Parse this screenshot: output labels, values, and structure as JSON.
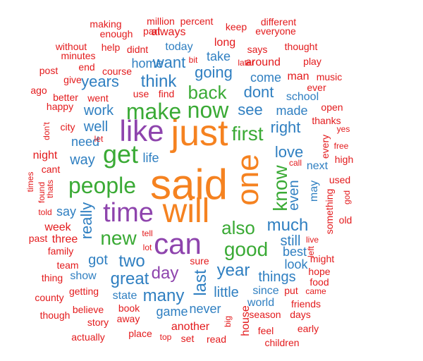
{
  "colors": {
    "orange": "#f58220",
    "purple": "#8e44ad",
    "green": "#3aaa35",
    "blue": "#2f7fc1",
    "red": "#e31a1c"
  },
  "words": [
    {
      "id": "said",
      "text": "said",
      "color": "orange",
      "vertical": false
    },
    {
      "id": "just",
      "text": "just",
      "color": "orange",
      "vertical": false
    },
    {
      "id": "will",
      "text": "will",
      "color": "orange",
      "vertical": false
    },
    {
      "id": "one",
      "text": "one",
      "color": "orange",
      "vertical": true
    },
    {
      "id": "can",
      "text": "can",
      "color": "purple",
      "vertical": false
    },
    {
      "id": "like",
      "text": "like",
      "color": "purple",
      "vertical": false
    },
    {
      "id": "time",
      "text": "time",
      "color": "purple",
      "vertical": false
    },
    {
      "id": "get",
      "text": "get",
      "color": "green",
      "vertical": false
    },
    {
      "id": "people",
      "text": "people",
      "color": "green",
      "vertical": false
    },
    {
      "id": "make",
      "text": "make",
      "color": "green",
      "vertical": false
    },
    {
      "id": "now",
      "text": "now",
      "color": "green",
      "vertical": false
    },
    {
      "id": "new",
      "text": "new",
      "color": "green",
      "vertical": false
    },
    {
      "id": "good",
      "text": "good",
      "color": "green",
      "vertical": false
    },
    {
      "id": "know",
      "text": "know",
      "color": "green",
      "vertical": true
    },
    {
      "id": "first",
      "text": "first",
      "color": "green",
      "vertical": false
    },
    {
      "id": "also",
      "text": "also",
      "color": "green",
      "vertical": false
    },
    {
      "id": "back",
      "text": "back",
      "color": "green",
      "vertical": false
    },
    {
      "id": "day",
      "text": "day",
      "color": "purple",
      "vertical": false
    },
    {
      "id": "two",
      "text": "two",
      "color": "blue",
      "vertical": false
    },
    {
      "id": "year",
      "text": "year",
      "color": "blue",
      "vertical": false
    },
    {
      "id": "last",
      "text": "last",
      "color": "blue",
      "vertical": true
    },
    {
      "id": "many",
      "text": "many",
      "color": "blue",
      "vertical": false
    },
    {
      "id": "great",
      "text": "great",
      "color": "blue",
      "vertical": false
    },
    {
      "id": "much",
      "text": "much",
      "color": "blue",
      "vertical": false
    },
    {
      "id": "think",
      "text": "think",
      "color": "blue",
      "vertical": false
    },
    {
      "id": "going",
      "text": "going",
      "color": "blue",
      "vertical": false
    },
    {
      "id": "see",
      "text": "see",
      "color": "blue",
      "vertical": false
    },
    {
      "id": "dont",
      "text": "dont",
      "color": "blue",
      "vertical": false
    },
    {
      "id": "really",
      "text": "really",
      "color": "blue",
      "vertical": true
    },
    {
      "id": "love",
      "text": "love",
      "color": "blue",
      "vertical": false
    },
    {
      "id": "years",
      "text": "years",
      "color": "blue",
      "vertical": false
    },
    {
      "id": "right",
      "text": "right",
      "color": "blue",
      "vertical": false
    },
    {
      "id": "want",
      "text": "want",
      "color": "blue",
      "vertical": false
    },
    {
      "id": "well",
      "text": "well",
      "color": "blue",
      "vertical": false
    },
    {
      "id": "way",
      "text": "way",
      "color": "blue",
      "vertical": false
    },
    {
      "id": "even",
      "text": "even",
      "color": "blue",
      "vertical": true
    },
    {
      "id": "still",
      "text": "still",
      "color": "blue",
      "vertical": false
    },
    {
      "id": "got",
      "text": "got",
      "color": "blue",
      "vertical": false
    },
    {
      "id": "work",
      "text": "work",
      "color": "blue",
      "vertical": false
    },
    {
      "id": "need",
      "text": "need",
      "color": "blue",
      "vertical": false
    },
    {
      "id": "come",
      "text": "come",
      "color": "blue",
      "vertical": false
    },
    {
      "id": "made",
      "text": "made",
      "color": "blue",
      "vertical": false
    },
    {
      "id": "things",
      "text": "things",
      "color": "blue",
      "vertical": false
    },
    {
      "id": "little",
      "text": "little",
      "color": "blue",
      "vertical": false
    },
    {
      "id": "game",
      "text": "game",
      "color": "blue",
      "vertical": false
    },
    {
      "id": "take",
      "text": "take",
      "color": "blue",
      "vertical": false
    },
    {
      "id": "home",
      "text": "home",
      "color": "blue",
      "vertical": false
    },
    {
      "id": "life",
      "text": "life",
      "color": "blue",
      "vertical": false
    },
    {
      "id": "say",
      "text": "say",
      "color": "blue",
      "vertical": false
    },
    {
      "id": "today",
      "text": "today",
      "color": "blue",
      "vertical": false
    },
    {
      "id": "may",
      "text": "may",
      "color": "blue",
      "vertical": true
    },
    {
      "id": "since",
      "text": "since",
      "color": "blue",
      "vertical": false
    },
    {
      "id": "world",
      "text": "world",
      "color": "blue",
      "vertical": false
    },
    {
      "id": "look",
      "text": "look",
      "color": "blue",
      "vertical": false
    },
    {
      "id": "best",
      "text": "best",
      "color": "blue",
      "vertical": false
    },
    {
      "id": "state",
      "text": "state",
      "color": "blue",
      "vertical": false
    },
    {
      "id": "never",
      "text": "never",
      "color": "blue",
      "vertical": false
    },
    {
      "id": "school",
      "text": "school",
      "color": "blue",
      "vertical": false
    },
    {
      "id": "show",
      "text": "show",
      "color": "blue",
      "vertical": false
    },
    {
      "id": "next",
      "text": "next",
      "color": "blue",
      "vertical": false
    },
    {
      "id": "around",
      "text": "around",
      "color": "red",
      "vertical": false
    },
    {
      "id": "house",
      "text": "house",
      "color": "red",
      "vertical": true
    },
    {
      "id": "another",
      "text": "another",
      "color": "red",
      "vertical": false
    },
    {
      "id": "long",
      "text": "long",
      "color": "red",
      "vertical": false
    },
    {
      "id": "three",
      "text": "three",
      "color": "red",
      "vertical": false
    },
    {
      "id": "week",
      "text": "week",
      "color": "red",
      "vertical": false
    },
    {
      "id": "always",
      "text": "always",
      "color": "red",
      "vertical": false
    },
    {
      "id": "part",
      "text": "part",
      "color": "red",
      "vertical": false
    },
    {
      "id": "million",
      "text": "million",
      "color": "red",
      "vertical": false
    },
    {
      "id": "percent",
      "text": "percent",
      "color": "red",
      "vertical": false
    },
    {
      "id": "keep",
      "text": "keep",
      "color": "red",
      "vertical": false
    },
    {
      "id": "different",
      "text": "different",
      "color": "red",
      "vertical": false
    },
    {
      "id": "everyone",
      "text": "everyone",
      "color": "red",
      "vertical": false
    },
    {
      "id": "making",
      "text": "making",
      "color": "red",
      "vertical": false
    },
    {
      "id": "enough",
      "text": "enough",
      "color": "red",
      "vertical": false
    },
    {
      "id": "says",
      "text": "says",
      "color": "red",
      "vertical": false
    },
    {
      "id": "thought",
      "text": "thought",
      "color": "red",
      "vertical": false
    },
    {
      "id": "without",
      "text": "without",
      "color": "red",
      "vertical": false
    },
    {
      "id": "help",
      "text": "help",
      "color": "red",
      "vertical": false
    },
    {
      "id": "didnt",
      "text": "didnt",
      "color": "red",
      "vertical": false
    },
    {
      "id": "minutes",
      "text": "minutes",
      "color": "red",
      "vertical": false
    },
    {
      "id": "bit",
      "text": "bit",
      "color": "red",
      "vertical": false
    },
    {
      "id": "play",
      "text": "play",
      "color": "red",
      "vertical": false
    },
    {
      "id": "post",
      "text": "post",
      "color": "red",
      "vertical": false
    },
    {
      "id": "end",
      "text": "end",
      "color": "red",
      "vertical": false
    },
    {
      "id": "course",
      "text": "course",
      "color": "red",
      "vertical": false
    },
    {
      "id": "later",
      "text": "later",
      "color": "red",
      "vertical": false
    },
    {
      "id": "man",
      "text": "man",
      "color": "red",
      "vertical": false
    },
    {
      "id": "music",
      "text": "music",
      "color": "red",
      "vertical": false
    },
    {
      "id": "ago",
      "text": "ago",
      "color": "red",
      "vertical": false
    },
    {
      "id": "give",
      "text": "give",
      "color": "red",
      "vertical": false
    },
    {
      "id": "use",
      "text": "use",
      "color": "red",
      "vertical": false
    },
    {
      "id": "find",
      "text": "find",
      "color": "red",
      "vertical": false
    },
    {
      "id": "ever",
      "text": "ever",
      "color": "red",
      "vertical": false
    },
    {
      "id": "better",
      "text": "better",
      "color": "red",
      "vertical": false
    },
    {
      "id": "went",
      "text": "went",
      "color": "red",
      "vertical": false
    },
    {
      "id": "open",
      "text": "open",
      "color": "red",
      "vertical": false
    },
    {
      "id": "happy",
      "text": "happy",
      "color": "red",
      "vertical": false
    },
    {
      "id": "thanks",
      "text": "thanks",
      "color": "red",
      "vertical": false
    },
    {
      "id": "city",
      "text": "city",
      "color": "red",
      "vertical": false
    },
    {
      "id": "dont2",
      "text": "don't",
      "color": "red",
      "vertical": true
    },
    {
      "id": "yes",
      "text": "yes",
      "color": "red",
      "vertical": false
    },
    {
      "id": "let",
      "text": "let",
      "color": "red",
      "vertical": false
    },
    {
      "id": "every",
      "text": "every",
      "color": "red",
      "vertical": true
    },
    {
      "id": "free",
      "text": "free",
      "color": "red",
      "vertical": false
    },
    {
      "id": "night",
      "text": "night",
      "color": "red",
      "vertical": false
    },
    {
      "id": "high",
      "text": "high",
      "color": "red",
      "vertical": false
    },
    {
      "id": "call",
      "text": "call",
      "color": "red",
      "vertical": false
    },
    {
      "id": "cant",
      "text": "cant",
      "color": "red",
      "vertical": false
    },
    {
      "id": "times",
      "text": "times",
      "color": "red",
      "vertical": true
    },
    {
      "id": "found",
      "text": "found",
      "color": "red",
      "vertical": true
    },
    {
      "id": "thats",
      "text": "thats",
      "color": "red",
      "vertical": true
    },
    {
      "id": "used",
      "text": "used",
      "color": "red",
      "vertical": false
    },
    {
      "id": "god",
      "text": "god",
      "color": "red",
      "vertical": true
    },
    {
      "id": "something",
      "text": "something",
      "color": "red",
      "vertical": true
    },
    {
      "id": "told",
      "text": "told",
      "color": "red",
      "vertical": false
    },
    {
      "id": "old",
      "text": "old",
      "color": "red",
      "vertical": false
    },
    {
      "id": "tell",
      "text": "tell",
      "color": "red",
      "vertical": false
    },
    {
      "id": "past",
      "text": "past",
      "color": "red",
      "vertical": false
    },
    {
      "id": "live",
      "text": "live",
      "color": "red",
      "vertical": false
    },
    {
      "id": "family",
      "text": "family",
      "color": "red",
      "vertical": false
    },
    {
      "id": "lot",
      "text": "lot",
      "color": "red",
      "vertical": false
    },
    {
      "id": "left",
      "text": "left",
      "color": "red",
      "vertical": true
    },
    {
      "id": "might",
      "text": "might",
      "color": "red",
      "vertical": false
    },
    {
      "id": "team",
      "text": "team",
      "color": "red",
      "vertical": false
    },
    {
      "id": "sure",
      "text": "sure",
      "color": "red",
      "vertical": false
    },
    {
      "id": "hope",
      "text": "hope",
      "color": "red",
      "vertical": false
    },
    {
      "id": "thing",
      "text": "thing",
      "color": "red",
      "vertical": false
    },
    {
      "id": "food",
      "text": "food",
      "color": "red",
      "vertical": false
    },
    {
      "id": "getting",
      "text": "getting",
      "color": "red",
      "vertical": false
    },
    {
      "id": "put",
      "text": "put",
      "color": "red",
      "vertical": false
    },
    {
      "id": "came",
      "text": "came",
      "color": "red",
      "vertical": false
    },
    {
      "id": "county",
      "text": "county",
      "color": "red",
      "vertical": false
    },
    {
      "id": "friends",
      "text": "friends",
      "color": "red",
      "vertical": false
    },
    {
      "id": "book",
      "text": "book",
      "color": "red",
      "vertical": false
    },
    {
      "id": "season",
      "text": "season",
      "color": "red",
      "vertical": false
    },
    {
      "id": "days",
      "text": "days",
      "color": "red",
      "vertical": false
    },
    {
      "id": "though",
      "text": "though",
      "color": "red",
      "vertical": false
    },
    {
      "id": "believe",
      "text": "believe",
      "color": "red",
      "vertical": false
    },
    {
      "id": "away",
      "text": "away",
      "color": "red",
      "vertical": false
    },
    {
      "id": "story",
      "text": "story",
      "color": "red",
      "vertical": false
    },
    {
      "id": "big",
      "text": "big",
      "color": "red",
      "vertical": true
    },
    {
      "id": "feel",
      "text": "feel",
      "color": "red",
      "vertical": false
    },
    {
      "id": "early",
      "text": "early",
      "color": "red",
      "vertical": false
    },
    {
      "id": "actually",
      "text": "actually",
      "color": "red",
      "vertical": false
    },
    {
      "id": "place",
      "text": "place",
      "color": "red",
      "vertical": false
    },
    {
      "id": "top",
      "text": "top",
      "color": "red",
      "vertical": false
    },
    {
      "id": "set",
      "text": "set",
      "color": "red",
      "vertical": false
    },
    {
      "id": "read",
      "text": "read",
      "color": "red",
      "vertical": false
    },
    {
      "id": "children",
      "text": "children",
      "color": "red",
      "vertical": false
    }
  ]
}
